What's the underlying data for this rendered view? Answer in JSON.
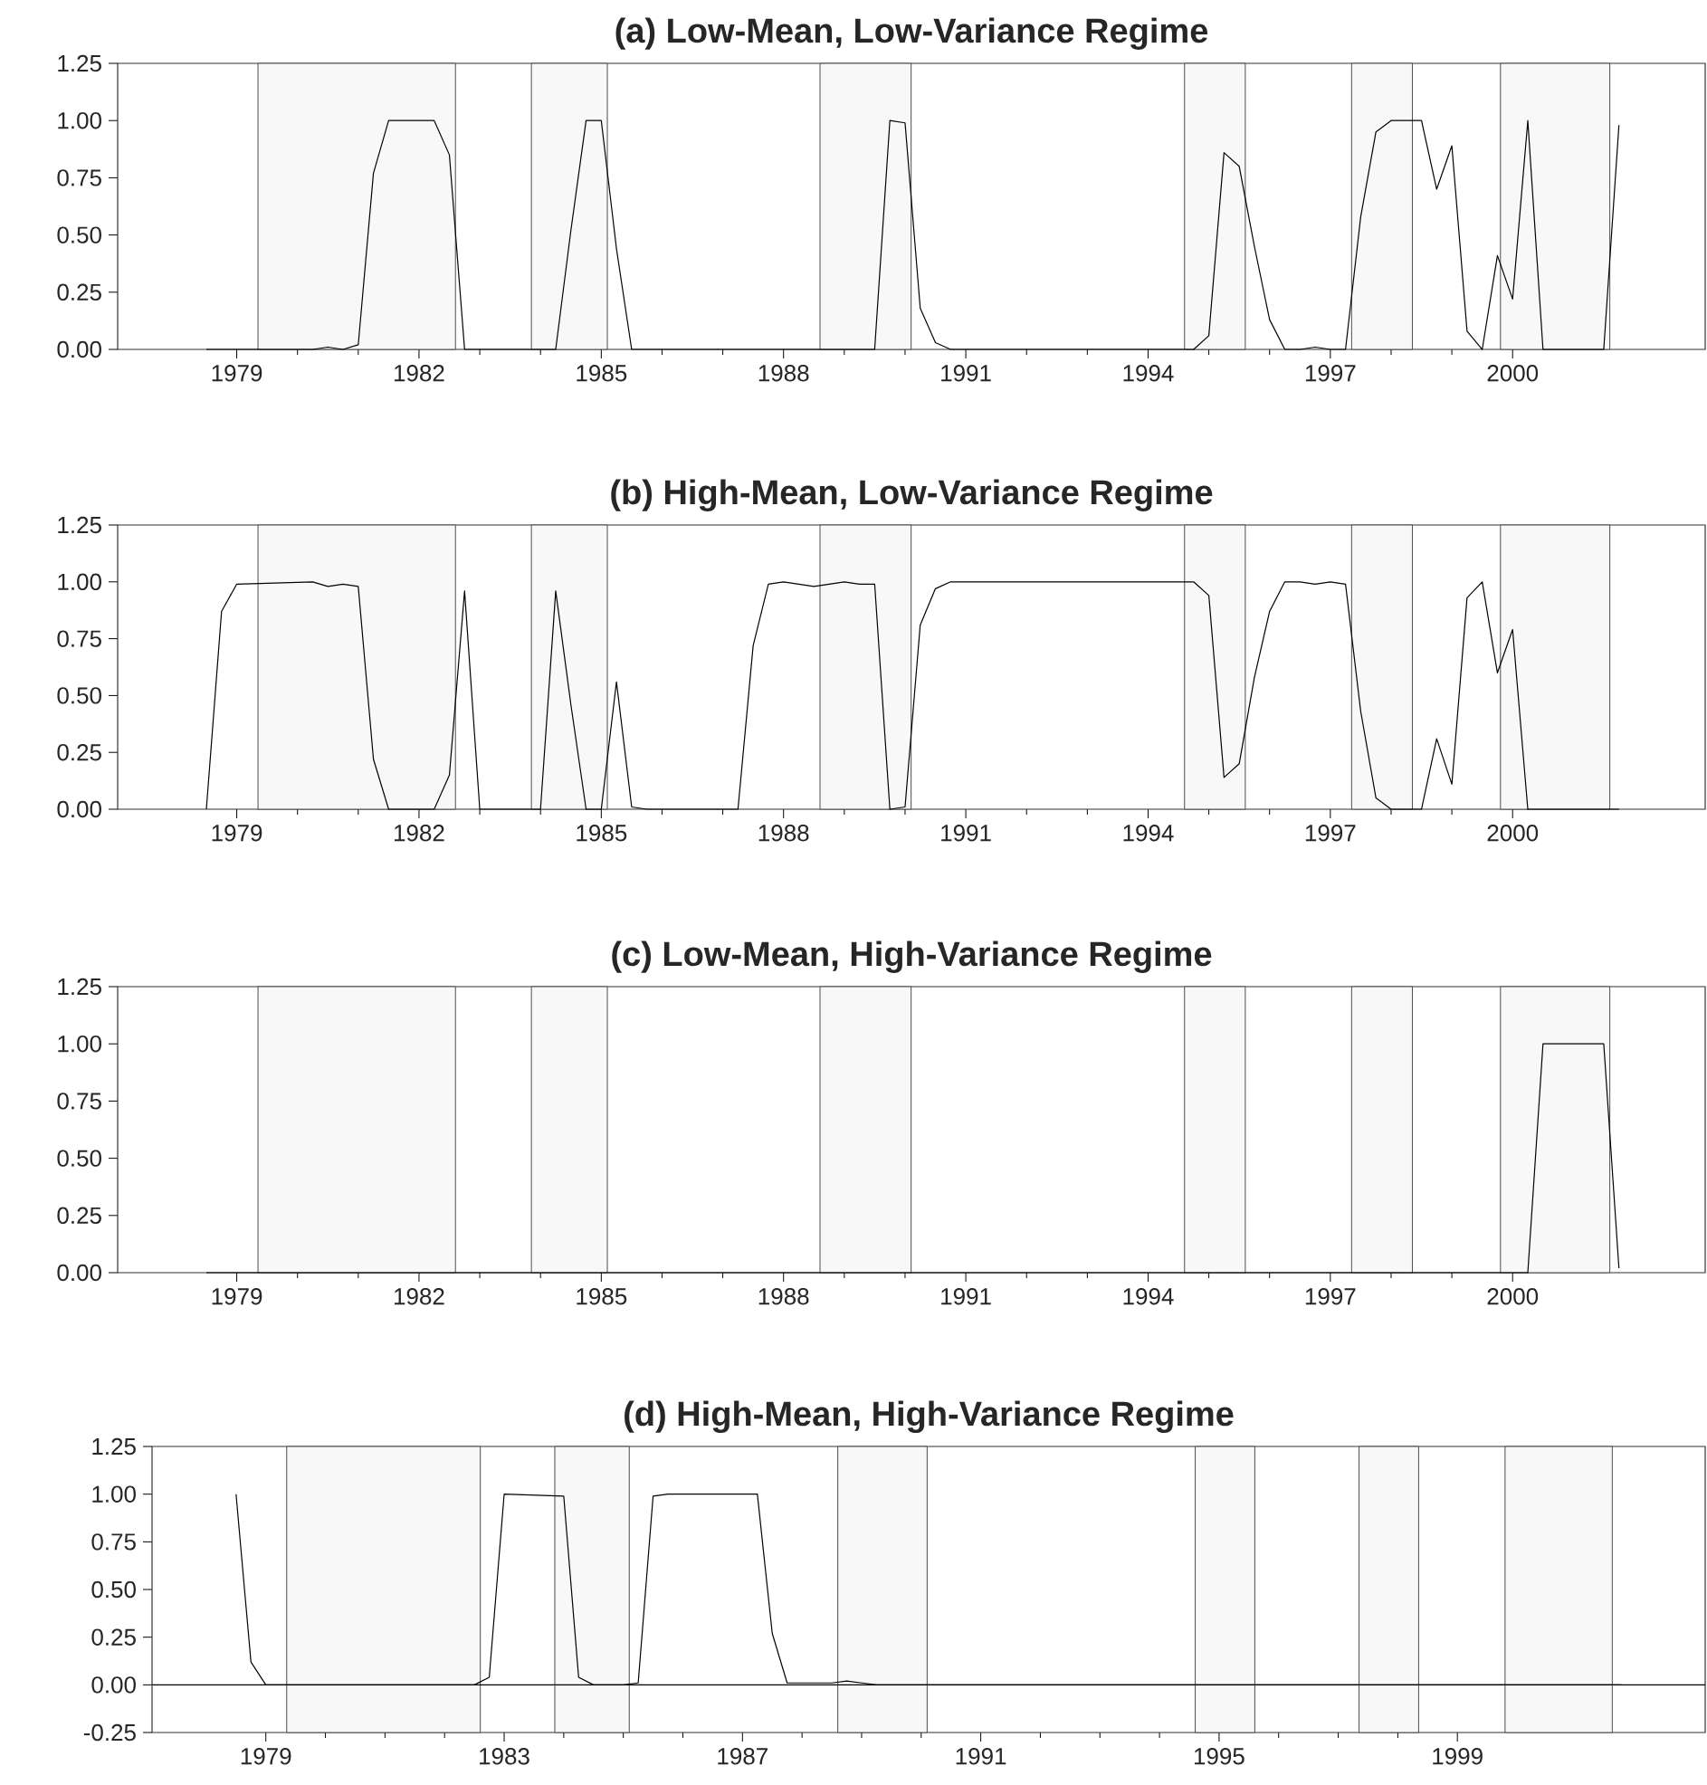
{
  "chart_data": [
    {
      "type": "line",
      "title": "(a) Low-Mean, Low-Variance Regime",
      "xlim": [
        1977.04,
        2003.17
      ],
      "xticks": [
        1979,
        1982,
        1985,
        1988,
        1991,
        1994,
        1997,
        2000
      ],
      "ylim": [
        0,
        1.25
      ],
      "yticks": [
        {
          "value": 0,
          "label": "0.00"
        },
        {
          "value": 0.25,
          "label": "0.25"
        },
        {
          "value": 0.5,
          "label": "0.50"
        },
        {
          "value": 0.75,
          "label": "0.75"
        },
        {
          "value": 1,
          "label": "1.00"
        },
        {
          "value": 1.25,
          "label": "1.25"
        }
      ],
      "bands": [
        {
          "axis": "x",
          "from": 1979.35,
          "to": 1982.6,
          "color": "#f8f8f8"
        },
        {
          "axis": "x",
          "from": 1983.85,
          "to": 1985.1,
          "color": "#f8f8f8"
        },
        {
          "axis": "x",
          "from": 1988.6,
          "to": 1990.1,
          "color": "#f8f8f8"
        },
        {
          "axis": "x",
          "from": 1994.6,
          "to": 1995.6,
          "color": "#f8f8f8"
        },
        {
          "axis": "x",
          "from": 1997.35,
          "to": 1998.35,
          "color": "#f8f8f8"
        },
        {
          "axis": "x",
          "from": 1999.8,
          "to": 2001.6,
          "color": "#f8f8f8"
        }
      ],
      "series": [
        {
          "color": "#000000",
          "x": [
            1978.5,
            1980.25,
            1980.5,
            1980.75,
            1981,
            1981.25,
            1981.5,
            1982.25,
            1982.5,
            1982.75,
            1984.25,
            1984.5,
            1984.75,
            1985,
            1985.25,
            1985.5,
            1989.5,
            1989.75,
            1990,
            1990.25,
            1990.5,
            1990.75,
            1994.75,
            1995,
            1995.25,
            1995.5,
            1995.75,
            1996,
            1996.25,
            1996.5,
            1996.75,
            1997,
            1997.25,
            1997.5,
            1997.75,
            1998,
            1998.5,
            1998.75,
            1999,
            1999.25,
            1999.5,
            1999.75,
            2000,
            2000.25,
            2000.5,
            2001.5,
            2001.75
          ],
          "values": [
            0,
            0,
            0.01,
            0,
            0.02,
            0.77,
            1,
            1,
            0.85,
            0,
            0,
            0.52,
            1,
            1,
            0.44,
            0,
            0,
            1,
            0.99,
            0.18,
            0.03,
            0,
            0,
            0.06,
            0.86,
            0.8,
            0.45,
            0.13,
            0,
            0,
            0.01,
            0,
            0,
            0.58,
            0.95,
            1,
            1,
            0.7,
            0.89,
            0.08,
            0,
            0.41,
            0.22,
            1,
            0,
            0,
            0.98
          ]
        }
      ]
    },
    {
      "type": "line",
      "title": "(b) High-Mean, Low-Variance Regime",
      "xlim": [
        1977.04,
        2003.17
      ],
      "xticks": [
        1979,
        1982,
        1985,
        1988,
        1991,
        1994,
        1997,
        2000
      ],
      "ylim": [
        0,
        1.25
      ],
      "yticks": [
        {
          "value": 0,
          "label": "0.00"
        },
        {
          "value": 0.25,
          "label": "0.25"
        },
        {
          "value": 0.5,
          "label": "0.50"
        },
        {
          "value": 0.75,
          "label": "0.75"
        },
        {
          "value": 1,
          "label": "1.00"
        },
        {
          "value": 1.25,
          "label": "1.25"
        }
      ],
      "bands": [
        {
          "axis": "x",
          "from": 1979.35,
          "to": 1982.6,
          "color": "#f8f8f8"
        },
        {
          "axis": "x",
          "from": 1983.85,
          "to": 1985.1,
          "color": "#f8f8f8"
        },
        {
          "axis": "x",
          "from": 1988.6,
          "to": 1990.1,
          "color": "#f8f8f8"
        },
        {
          "axis": "x",
          "from": 1994.6,
          "to": 1995.6,
          "color": "#f8f8f8"
        },
        {
          "axis": "x",
          "from": 1997.35,
          "to": 1998.35,
          "color": "#f8f8f8"
        },
        {
          "axis": "x",
          "from": 1999.8,
          "to": 2001.6,
          "color": "#f8f8f8"
        }
      ],
      "series": [
        {
          "color": "#000000",
          "x": [
            1978.5,
            1978.75,
            1979,
            1980.25,
            1980.5,
            1980.75,
            1981,
            1981.25,
            1981.5,
            1982.25,
            1982.5,
            1982.75,
            1983,
            1984,
            1984.25,
            1984.5,
            1984.75,
            1985,
            1985.25,
            1985.5,
            1985.75,
            1987.25,
            1987.5,
            1987.75,
            1988,
            1988.25,
            1988.5,
            1988.75,
            1989,
            1989.25,
            1989.5,
            1989.75,
            1990,
            1990.25,
            1990.5,
            1990.75,
            1994.75,
            1995,
            1995.25,
            1995.5,
            1995.75,
            1996,
            1996.25,
            1996.5,
            1996.75,
            1997,
            1997.25,
            1997.5,
            1997.75,
            1998,
            1998.25,
            1998.5,
            1998.75,
            1999,
            1999.25,
            1999.5,
            1999.75,
            2000,
            2000.25,
            2001.75
          ],
          "values": [
            0,
            0.87,
            0.99,
            1,
            0.98,
            0.99,
            0.98,
            0.22,
            0,
            0,
            0.15,
            0.96,
            0,
            0,
            0.96,
            0.46,
            0,
            0,
            0.56,
            0.01,
            0,
            0,
            0.72,
            0.99,
            1,
            0.99,
            0.98,
            0.99,
            1,
            0.99,
            0.99,
            0,
            0.01,
            0.81,
            0.97,
            1,
            1,
            0.94,
            0.14,
            0.2,
            0.58,
            0.87,
            1,
            1,
            0.99,
            1,
            0.99,
            0.43,
            0.05,
            0,
            0,
            0,
            0.31,
            0.11,
            0.93,
            1,
            0.6,
            0.79,
            0,
            0
          ]
        }
      ]
    },
    {
      "type": "line",
      "title": "(c) Low-Mean, High-Variance Regime",
      "xlim": [
        1977.04,
        2003.17
      ],
      "xticks": [
        1979,
        1982,
        1985,
        1988,
        1991,
        1994,
        1997,
        2000
      ],
      "ylim": [
        0,
        1.25
      ],
      "yticks": [
        {
          "value": 0,
          "label": "0.00"
        },
        {
          "value": 0.25,
          "label": "0.25"
        },
        {
          "value": 0.5,
          "label": "0.50"
        },
        {
          "value": 0.75,
          "label": "0.75"
        },
        {
          "value": 1,
          "label": "1.00"
        },
        {
          "value": 1.25,
          "label": "1.25"
        }
      ],
      "bands": [
        {
          "axis": "x",
          "from": 1979.35,
          "to": 1982.6,
          "color": "#f8f8f8"
        },
        {
          "axis": "x",
          "from": 1983.85,
          "to": 1985.1,
          "color": "#f8f8f8"
        },
        {
          "axis": "x",
          "from": 1988.6,
          "to": 1990.1,
          "color": "#f8f8f8"
        },
        {
          "axis": "x",
          "from": 1994.6,
          "to": 1995.6,
          "color": "#f8f8f8"
        },
        {
          "axis": "x",
          "from": 1997.35,
          "to": 1998.35,
          "color": "#f8f8f8"
        },
        {
          "axis": "x",
          "from": 1999.8,
          "to": 2001.6,
          "color": "#f8f8f8"
        }
      ],
      "series": [
        {
          "color": "#000000",
          "x": [
            1978.5,
            2000.25,
            2000.5,
            2001.5,
            2001.75
          ],
          "values": [
            0,
            0,
            1,
            1,
            0.02
          ]
        }
      ]
    },
    {
      "type": "line",
      "title": "(d) High-Mean, High-Variance Regime",
      "xlim": [
        1977.09,
        2003.16
      ],
      "xticks": [
        1979,
        1983,
        1987,
        1991,
        1995,
        1999
      ],
      "ylim": [
        -0.25,
        1.25
      ],
      "yticks": [
        {
          "value": -0.25,
          "label": "-0.25"
        },
        {
          "value": 0,
          "label": "0.00"
        },
        {
          "value": 0.25,
          "label": "0.25"
        },
        {
          "value": 0.5,
          "label": "0.50"
        },
        {
          "value": 0.75,
          "label": "0.75"
        },
        {
          "value": 1,
          "label": "1.00"
        },
        {
          "value": 1.25,
          "label": "1.25"
        }
      ],
      "ref_lines": [
        {
          "axis": "y",
          "value": 0,
          "color": "#000000"
        }
      ],
      "bands": [
        {
          "axis": "x",
          "from": 1979.35,
          "to": 1982.6,
          "color": "#f8f8f8"
        },
        {
          "axis": "x",
          "from": 1983.85,
          "to": 1985.1,
          "color": "#f8f8f8"
        },
        {
          "axis": "x",
          "from": 1988.6,
          "to": 1990.1,
          "color": "#f8f8f8"
        },
        {
          "axis": "x",
          "from": 1994.6,
          "to": 1995.6,
          "color": "#f8f8f8"
        },
        {
          "axis": "x",
          "from": 1997.35,
          "to": 1998.35,
          "color": "#f8f8f8"
        },
        {
          "axis": "x",
          "from": 1999.8,
          "to": 2001.6,
          "color": "#f8f8f8"
        }
      ],
      "series": [
        {
          "color": "#000000",
          "x": [
            1978.5,
            1978.75,
            1979,
            1982.5,
            1982.75,
            1983,
            1984,
            1984.25,
            1984.5,
            1985,
            1985.25,
            1985.5,
            1985.75,
            1987.25,
            1987.5,
            1987.75,
            1988.5,
            1988.75,
            1989,
            1989.25,
            2001.75
          ],
          "values": [
            1,
            0.12,
            0,
            0,
            0.04,
            1,
            0.99,
            0.04,
            0,
            0,
            0.01,
            0.99,
            1,
            1,
            0.27,
            0.01,
            0.01,
            0.02,
            0.01,
            0,
            0
          ]
        }
      ]
    }
  ]
}
